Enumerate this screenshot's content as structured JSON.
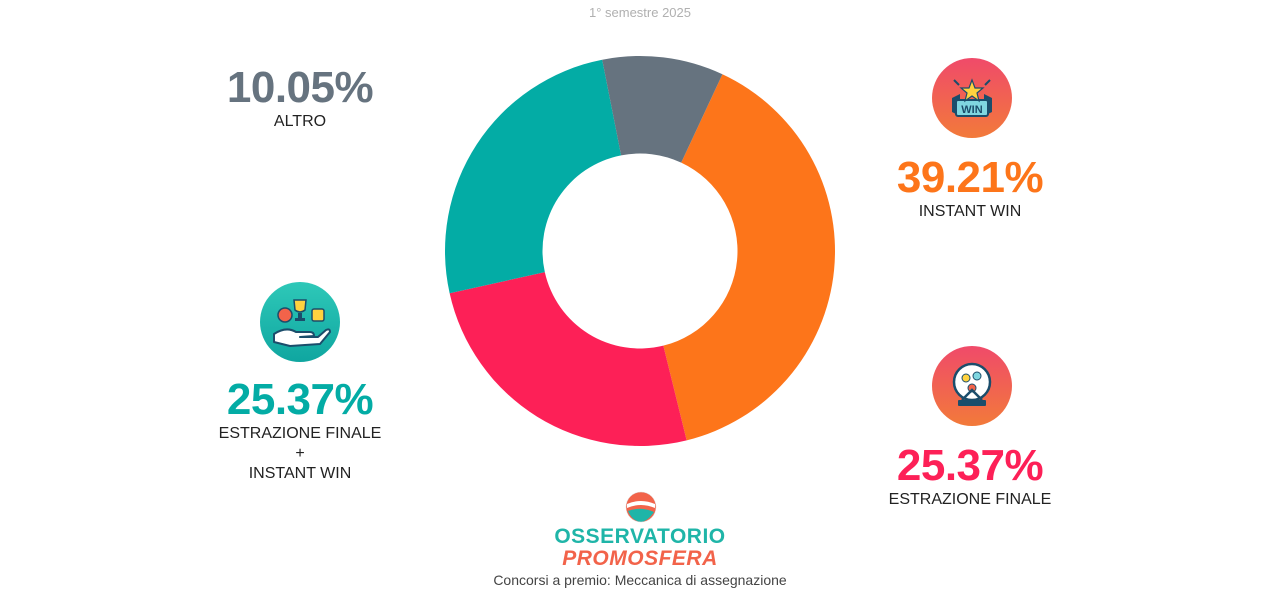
{
  "colors": {
    "instant_win": "#fd751a",
    "estrazione_finale": "#fd2057",
    "estrazione_instant": "#03aca5",
    "altro": "#66737f"
  },
  "chart_data": {
    "type": "pie",
    "subtitle": "1° semestre 2025",
    "caption": "Concorsi a premio: Meccanica di assegnazione",
    "hole": 0.5,
    "slices": [
      {
        "label": "INSTANT WIN",
        "value": 39.21,
        "display": "39.21%",
        "color": "#fd751a"
      },
      {
        "label": "ESTRAZIONE FINALE",
        "value": 25.37,
        "display": "25.37%",
        "color": "#fd2057"
      },
      {
        "label_lines": [
          "ESTRAZIONE FINALE",
          "+",
          "INSTANT WIN"
        ],
        "value": 25.37,
        "display": "25.37%",
        "color": "#03aca5"
      },
      {
        "label": "ALTRO",
        "value": 10.05,
        "display": "10.05%",
        "color": "#66737f"
      }
    ]
  },
  "brand": {
    "line1": "OSSERVATORIO",
    "line2": "PROMOSFERA"
  },
  "icons": {
    "instant_win": "win-ticket-icon",
    "estrazione_finale": "lottery-drum-icon",
    "estrazione_instant": "hand-prize-icon",
    "brand": "globe-logo-icon"
  },
  "icon_text": {
    "win": "WIN"
  }
}
